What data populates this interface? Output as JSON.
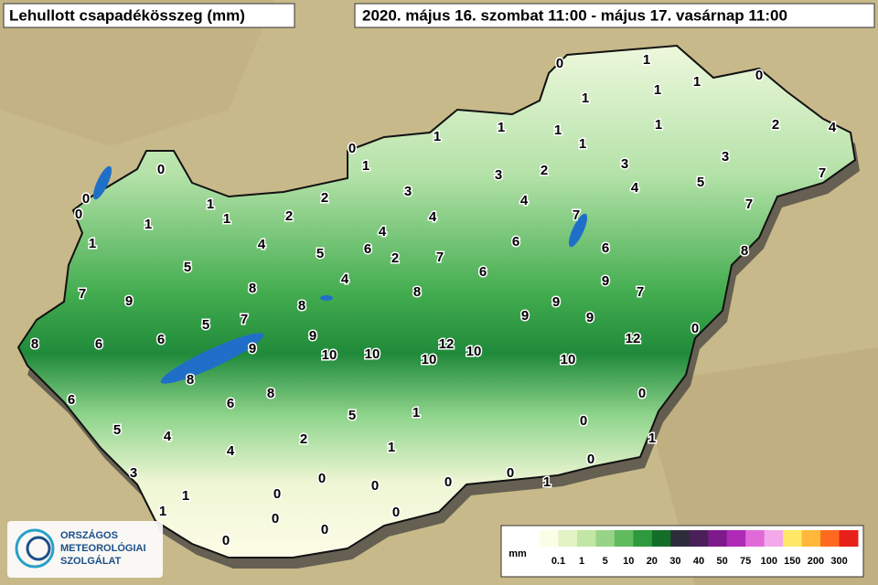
{
  "header": {
    "title": "Lehullott csapadékösszeg (mm)",
    "period": "2020. május 16. szombat 11:00 - május 17. vasárnap 11:00"
  },
  "stations": [
    0,
    1,
    1,
    0,
    1,
    1,
    1,
    1,
    1,
    2,
    4,
    1,
    1,
    0,
    1,
    3,
    2,
    3,
    3,
    7,
    0,
    0,
    0,
    1,
    2,
    3,
    4,
    4,
    5,
    7,
    1,
    2,
    4,
    4,
    7,
    1,
    1,
    4,
    5,
    6,
    2,
    7,
    6,
    6,
    8,
    5,
    4,
    6,
    8,
    7,
    9,
    8,
    9,
    7,
    9,
    8,
    7,
    5,
    9,
    9,
    0,
    8,
    6,
    6,
    9,
    9,
    12,
    12,
    10,
    10,
    10,
    10,
    10,
    8,
    8,
    0,
    6,
    6,
    5,
    1,
    0,
    5,
    4,
    1,
    2,
    1,
    4,
    3,
    0,
    0,
    1,
    0,
    0,
    0,
    1,
    0,
    1,
    0,
    0,
    0,
    0
  ],
  "legend": {
    "unit": "mm",
    "labels": [
      0.1,
      1,
      5,
      10,
      20,
      30,
      40,
      50,
      75,
      100,
      150,
      200,
      300
    ],
    "colors": [
      "#fbfde6",
      "#e2f3c4",
      "#c2e6a4",
      "#97d488",
      "#5fbb5e",
      "#2e9a3e",
      "#146e28",
      "#2c2d3a",
      "#4a1f5a",
      "#7d1a8c",
      "#b02ab8",
      "#e06ad8",
      "#f3a9e9",
      "#ffe866",
      "#ffb83a",
      "#ff6a1f",
      "#e8201a"
    ]
  },
  "logo": {
    "lines": [
      "ORSZÁGOS",
      "METEOROLÓGIAI",
      "SZOLGÁLAT"
    ]
  }
}
